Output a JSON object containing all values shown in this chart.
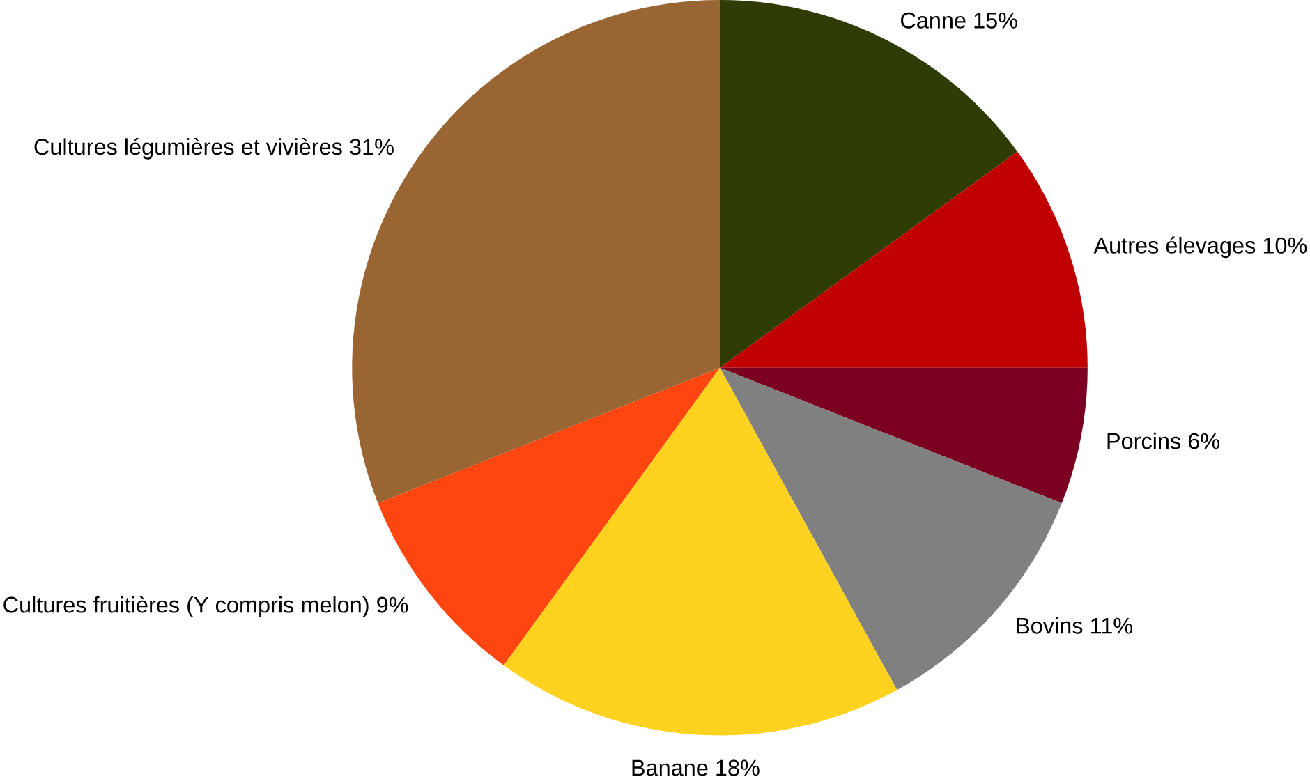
{
  "chart_data": {
    "type": "pie",
    "categories": [
      "Canne",
      "Autres élevages",
      "Porcins",
      "Bovins",
      "Banane",
      "Cultures fruitières (Y compris melon)",
      "Cultures légumières et vivières"
    ],
    "values": [
      15,
      10,
      6,
      11,
      18,
      9,
      31
    ],
    "value_labels": [
      "15%",
      "10%",
      "6%",
      "11%",
      "18%",
      "9%",
      "31%"
    ],
    "colors": [
      "#2f3c05",
      "#c00000",
      "#7b0020",
      "#808080",
      "#ffd21f",
      "#ff4611",
      "#996633"
    ]
  }
}
